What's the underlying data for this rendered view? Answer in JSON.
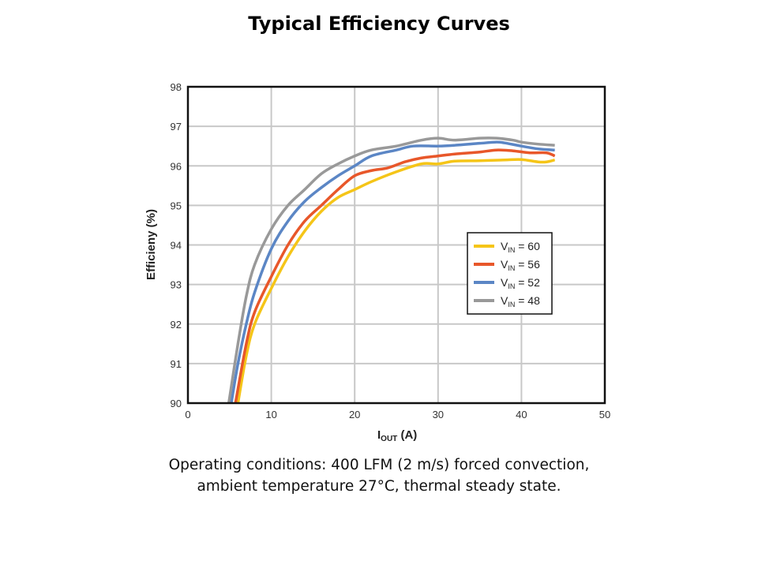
{
  "title": "Typical Efficiency Curves",
  "caption": {
    "line1": "Operating conditions: 400 LFM (2 m/s) forced convection,",
    "line2": "ambient temperature 27°C, thermal steady state."
  },
  "chart_data": {
    "type": "line",
    "title": "Typical Efficiency Curves",
    "xlabel_main": "I",
    "xlabel_sub": "OUT",
    "xlabel_unit": " (A)",
    "ylabel": "Efficieny (%)",
    "xlim": [
      0,
      50
    ],
    "ylim": [
      90,
      98
    ],
    "xticks": [
      "0",
      "10",
      "20",
      "30",
      "40",
      "50"
    ],
    "yticks": [
      "90",
      "91",
      "92",
      "93",
      "94",
      "95",
      "96",
      "97",
      "98"
    ],
    "grid": true,
    "legend_position": "center-right",
    "legend_prefix": "V",
    "legend_sub": "IN",
    "series": [
      {
        "name": "60",
        "label": " = 60",
        "color": "#F5C518",
        "x": [
          6,
          7,
          8,
          10,
          12,
          14,
          16,
          18,
          20,
          22,
          25,
          28,
          30,
          32,
          35,
          38,
          40,
          42,
          43,
          44
        ],
        "y": [
          90,
          91.2,
          92.0,
          92.9,
          93.7,
          94.35,
          94.85,
          95.2,
          95.4,
          95.6,
          95.85,
          96.05,
          96.05,
          96.12,
          96.13,
          96.15,
          96.16,
          96.1,
          96.1,
          96.15
        ]
      },
      {
        "name": "56",
        "label": " = 56",
        "color": "#E8572A",
        "x": [
          5.7,
          7,
          8,
          10,
          12,
          14,
          16,
          18,
          20,
          22,
          24,
          26,
          28,
          30,
          32,
          35,
          37,
          39,
          41,
          43,
          44
        ],
        "y": [
          90,
          91.5,
          92.3,
          93.2,
          94.0,
          94.6,
          95.0,
          95.4,
          95.75,
          95.88,
          95.95,
          96.1,
          96.2,
          96.25,
          96.3,
          96.35,
          96.4,
          96.38,
          96.33,
          96.33,
          96.25
        ]
      },
      {
        "name": "52",
        "label": " = 52",
        "color": "#5B86C5",
        "x": [
          5.2,
          6,
          7,
          8,
          10,
          12,
          14,
          16,
          18,
          20,
          22,
          25,
          27,
          30,
          32,
          35,
          37,
          38,
          40,
          42,
          44
        ],
        "y": [
          90,
          91,
          92,
          92.8,
          93.9,
          94.6,
          95.1,
          95.45,
          95.75,
          96.0,
          96.25,
          96.4,
          96.5,
          96.5,
          96.52,
          96.57,
          96.6,
          96.58,
          96.5,
          96.43,
          96.4
        ]
      },
      {
        "name": "48",
        "label": " = 48",
        "color": "#999999",
        "x": [
          4.9,
          6,
          7,
          8,
          10,
          12,
          14,
          16,
          18,
          20,
          22,
          25,
          28,
          30,
          32,
          35,
          37,
          39,
          40,
          42,
          44
        ],
        "y": [
          90,
          91.5,
          92.7,
          93.5,
          94.4,
          95.0,
          95.4,
          95.8,
          96.05,
          96.25,
          96.4,
          96.5,
          96.65,
          96.7,
          96.65,
          96.7,
          96.7,
          96.65,
          96.6,
          96.55,
          96.52
        ]
      }
    ]
  }
}
